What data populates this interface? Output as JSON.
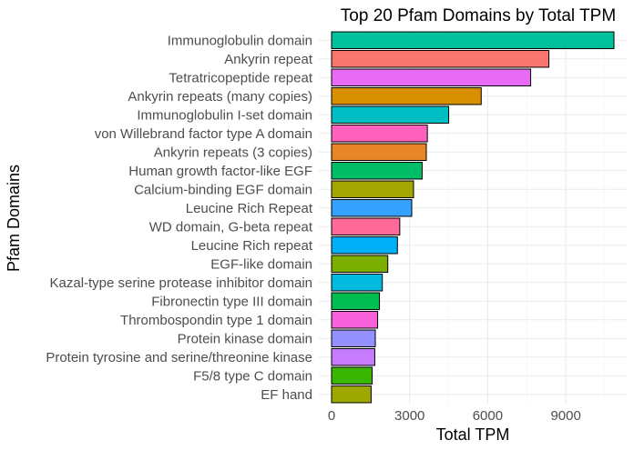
{
  "chart_data": {
    "type": "bar",
    "orientation": "horizontal",
    "title": "Top 20 Pfam Domains by Total TPM",
    "xlabel": "Total TPM",
    "ylabel": "Pfam Domains",
    "xlim": [
      0,
      11000
    ],
    "xticks": [
      0,
      3000,
      6000,
      9000
    ],
    "xtick_labels": [
      "0",
      "3000",
      "6000",
      "9000"
    ],
    "grid": true,
    "legend": "none",
    "categories": [
      "Immunoglobulin domain",
      "Ankyrin repeat",
      "Tetratricopeptide repeat",
      "Ankyrin repeats (many copies)",
      "Immunoglobulin I-set domain",
      "von Willebrand factor type A domain",
      "Ankyrin repeats (3 copies)",
      "Human growth factor-like EGF",
      "Calcium-binding EGF domain",
      "Leucine Rich Repeat",
      "WD domain, G-beta repeat",
      "Leucine Rich repeat",
      "EGF-like domain",
      "Kazal-type serine protease inhibitor domain",
      "Fibronectin type III domain",
      "Thrombospondin type 1 domain",
      "Protein kinase domain",
      "Protein tyrosine and serine/threonine kinase",
      "F5/8 type C domain",
      "EF hand"
    ],
    "values": [
      10850,
      8350,
      7650,
      5750,
      4500,
      3680,
      3640,
      3480,
      3150,
      3080,
      2620,
      2530,
      2160,
      1950,
      1840,
      1770,
      1680,
      1660,
      1560,
      1520
    ],
    "colors": [
      "#00C19A",
      "#F8766D",
      "#E76BF3",
      "#D89000",
      "#00BFC4",
      "#FF62BC",
      "#E88526",
      "#00BE67",
      "#A3A500",
      "#35A2FF",
      "#FF6A98",
      "#00B0F6",
      "#7CAE00",
      "#00BAE0",
      "#00BC51",
      "#FA62DB",
      "#9590FF",
      "#C77CFF",
      "#39B600",
      "#9CA700"
    ]
  }
}
